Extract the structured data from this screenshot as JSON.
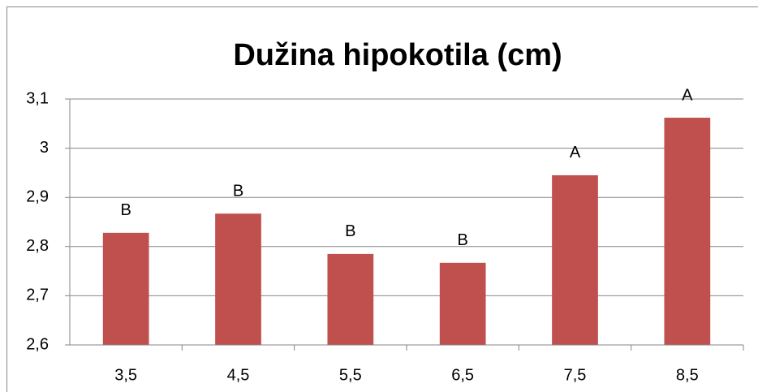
{
  "chart_data": {
    "type": "bar",
    "title": "Dužina hipokotila (cm)",
    "categories": [
      "3,5",
      "4,5",
      "5,5",
      "6,5",
      "7,5",
      "8,5"
    ],
    "values": [
      2.828,
      2.867,
      2.785,
      2.767,
      2.945,
      3.062
    ],
    "annotations": [
      "B",
      "B",
      "B",
      "B",
      "A",
      "A"
    ],
    "color": "#c0504d",
    "ylim": [
      2.6,
      3.1
    ],
    "yticks": [
      {
        "value": 2.6,
        "label": "2,6"
      },
      {
        "value": 2.7,
        "label": "2,7"
      },
      {
        "value": 2.8,
        "label": "2,8"
      },
      {
        "value": 2.9,
        "label": "2,9"
      },
      3,
      {
        "value": 3.1,
        "label": "3,1"
      }
    ],
    "grid": true
  }
}
